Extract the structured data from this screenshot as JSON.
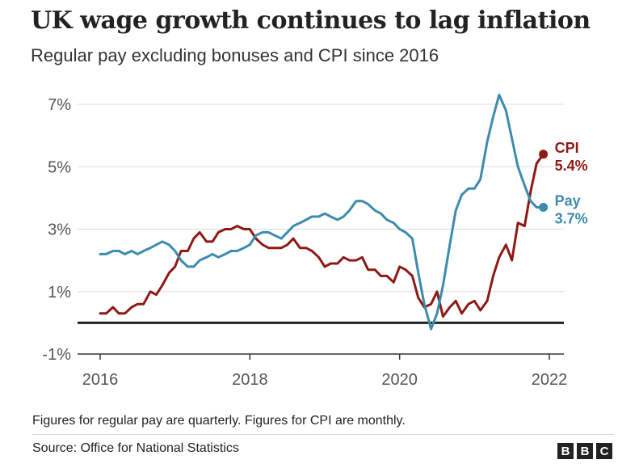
{
  "title": "UK wage growth continues to lag inflation",
  "subtitle": "Regular pay excluding bonuses and CPI since 2016",
  "footnote": "Figures for regular pay are quarterly. Figures for CPI are monthly.",
  "source": "Source: Office for National Statistics",
  "logo": {
    "letters": [
      "B",
      "B",
      "C"
    ]
  },
  "colors": {
    "cpi": "#8d1a14",
    "pay": "#3d8bad",
    "grid": "#dddddd",
    "axis": "#333333",
    "zero_line": "#222222"
  },
  "chart_data": {
    "type": "line",
    "xlim": [
      2016,
      2022
    ],
    "ylim": [
      -1,
      7
    ],
    "x_ticks": [
      2016,
      2018,
      2020,
      2022
    ],
    "x_tick_labels": [
      "2016",
      "2018",
      "2020",
      "2022"
    ],
    "y_ticks": [
      -1,
      1,
      3,
      5,
      7
    ],
    "y_tick_labels": [
      "-1%",
      "1%",
      "3%",
      "5%",
      "7%"
    ],
    "grid": true,
    "xlabel": "",
    "ylabel": "",
    "series": [
      {
        "name": "CPI",
        "end_label": "5.4%",
        "color": "#8d1a14",
        "x": [
          2016.0,
          2016.08,
          2016.17,
          2016.25,
          2016.33,
          2016.42,
          2016.5,
          2016.58,
          2016.67,
          2016.75,
          2016.83,
          2016.92,
          2017.0,
          2017.08,
          2017.17,
          2017.25,
          2017.33,
          2017.42,
          2017.5,
          2017.58,
          2017.67,
          2017.75,
          2017.83,
          2017.92,
          2018.0,
          2018.08,
          2018.17,
          2018.25,
          2018.33,
          2018.42,
          2018.5,
          2018.58,
          2018.67,
          2018.75,
          2018.83,
          2018.92,
          2019.0,
          2019.08,
          2019.17,
          2019.25,
          2019.33,
          2019.42,
          2019.5,
          2019.58,
          2019.67,
          2019.75,
          2019.83,
          2019.92,
          2020.0,
          2020.08,
          2020.17,
          2020.25,
          2020.33,
          2020.42,
          2020.5,
          2020.58,
          2020.67,
          2020.75,
          2020.83,
          2020.92,
          2021.0,
          2021.08,
          2021.17,
          2021.25,
          2021.33,
          2021.42,
          2021.5,
          2021.58,
          2021.67,
          2021.75,
          2021.83,
          2021.92
        ],
        "values": [
          0.3,
          0.3,
          0.5,
          0.3,
          0.3,
          0.5,
          0.6,
          0.6,
          1.0,
          0.9,
          1.2,
          1.6,
          1.8,
          2.3,
          2.3,
          2.7,
          2.9,
          2.6,
          2.6,
          2.9,
          3.0,
          3.0,
          3.1,
          3.0,
          3.0,
          2.7,
          2.5,
          2.4,
          2.4,
          2.4,
          2.5,
          2.7,
          2.4,
          2.4,
          2.3,
          2.1,
          1.8,
          1.9,
          1.9,
          2.1,
          2.0,
          2.0,
          2.1,
          1.7,
          1.7,
          1.5,
          1.5,
          1.3,
          1.8,
          1.7,
          1.5,
          0.8,
          0.5,
          0.6,
          1.0,
          0.2,
          0.5,
          0.7,
          0.3,
          0.6,
          0.7,
          0.4,
          0.7,
          1.5,
          2.1,
          2.5,
          2.0,
          3.2,
          3.1,
          4.2,
          5.1,
          5.4
        ]
      },
      {
        "name": "Pay",
        "end_label": "3.7%",
        "color": "#3d8bad",
        "x": [
          2016.0,
          2016.08,
          2016.17,
          2016.25,
          2016.33,
          2016.42,
          2016.5,
          2016.58,
          2016.67,
          2016.75,
          2016.83,
          2016.92,
          2017.0,
          2017.08,
          2017.17,
          2017.25,
          2017.33,
          2017.42,
          2017.5,
          2017.58,
          2017.67,
          2017.75,
          2017.83,
          2017.92,
          2018.0,
          2018.08,
          2018.17,
          2018.25,
          2018.33,
          2018.42,
          2018.5,
          2018.58,
          2018.67,
          2018.75,
          2018.83,
          2018.92,
          2019.0,
          2019.08,
          2019.17,
          2019.25,
          2019.33,
          2019.42,
          2019.5,
          2019.58,
          2019.67,
          2019.75,
          2019.83,
          2019.92,
          2020.0,
          2020.08,
          2020.17,
          2020.25,
          2020.33,
          2020.42,
          2020.5,
          2020.58,
          2020.67,
          2020.75,
          2020.83,
          2020.92,
          2021.0,
          2021.08,
          2021.17,
          2021.25,
          2021.33,
          2021.42,
          2021.5,
          2021.58,
          2021.67,
          2021.75,
          2021.83,
          2021.92
        ],
        "values": [
          2.2,
          2.2,
          2.3,
          2.3,
          2.2,
          2.3,
          2.2,
          2.3,
          2.4,
          2.5,
          2.6,
          2.5,
          2.3,
          2.0,
          1.8,
          1.8,
          2.0,
          2.1,
          2.2,
          2.1,
          2.2,
          2.3,
          2.3,
          2.4,
          2.5,
          2.8,
          2.9,
          2.9,
          2.8,
          2.7,
          2.9,
          3.1,
          3.2,
          3.3,
          3.4,
          3.4,
          3.5,
          3.4,
          3.3,
          3.4,
          3.6,
          3.9,
          3.9,
          3.8,
          3.6,
          3.5,
          3.3,
          3.2,
          3.0,
          2.9,
          2.7,
          1.6,
          0.6,
          -0.2,
          0.3,
          1.2,
          2.5,
          3.6,
          4.1,
          4.3,
          4.3,
          4.6,
          5.8,
          6.6,
          7.3,
          6.8,
          5.9,
          5.0,
          4.4,
          3.9,
          3.7,
          3.7
        ]
      }
    ]
  }
}
